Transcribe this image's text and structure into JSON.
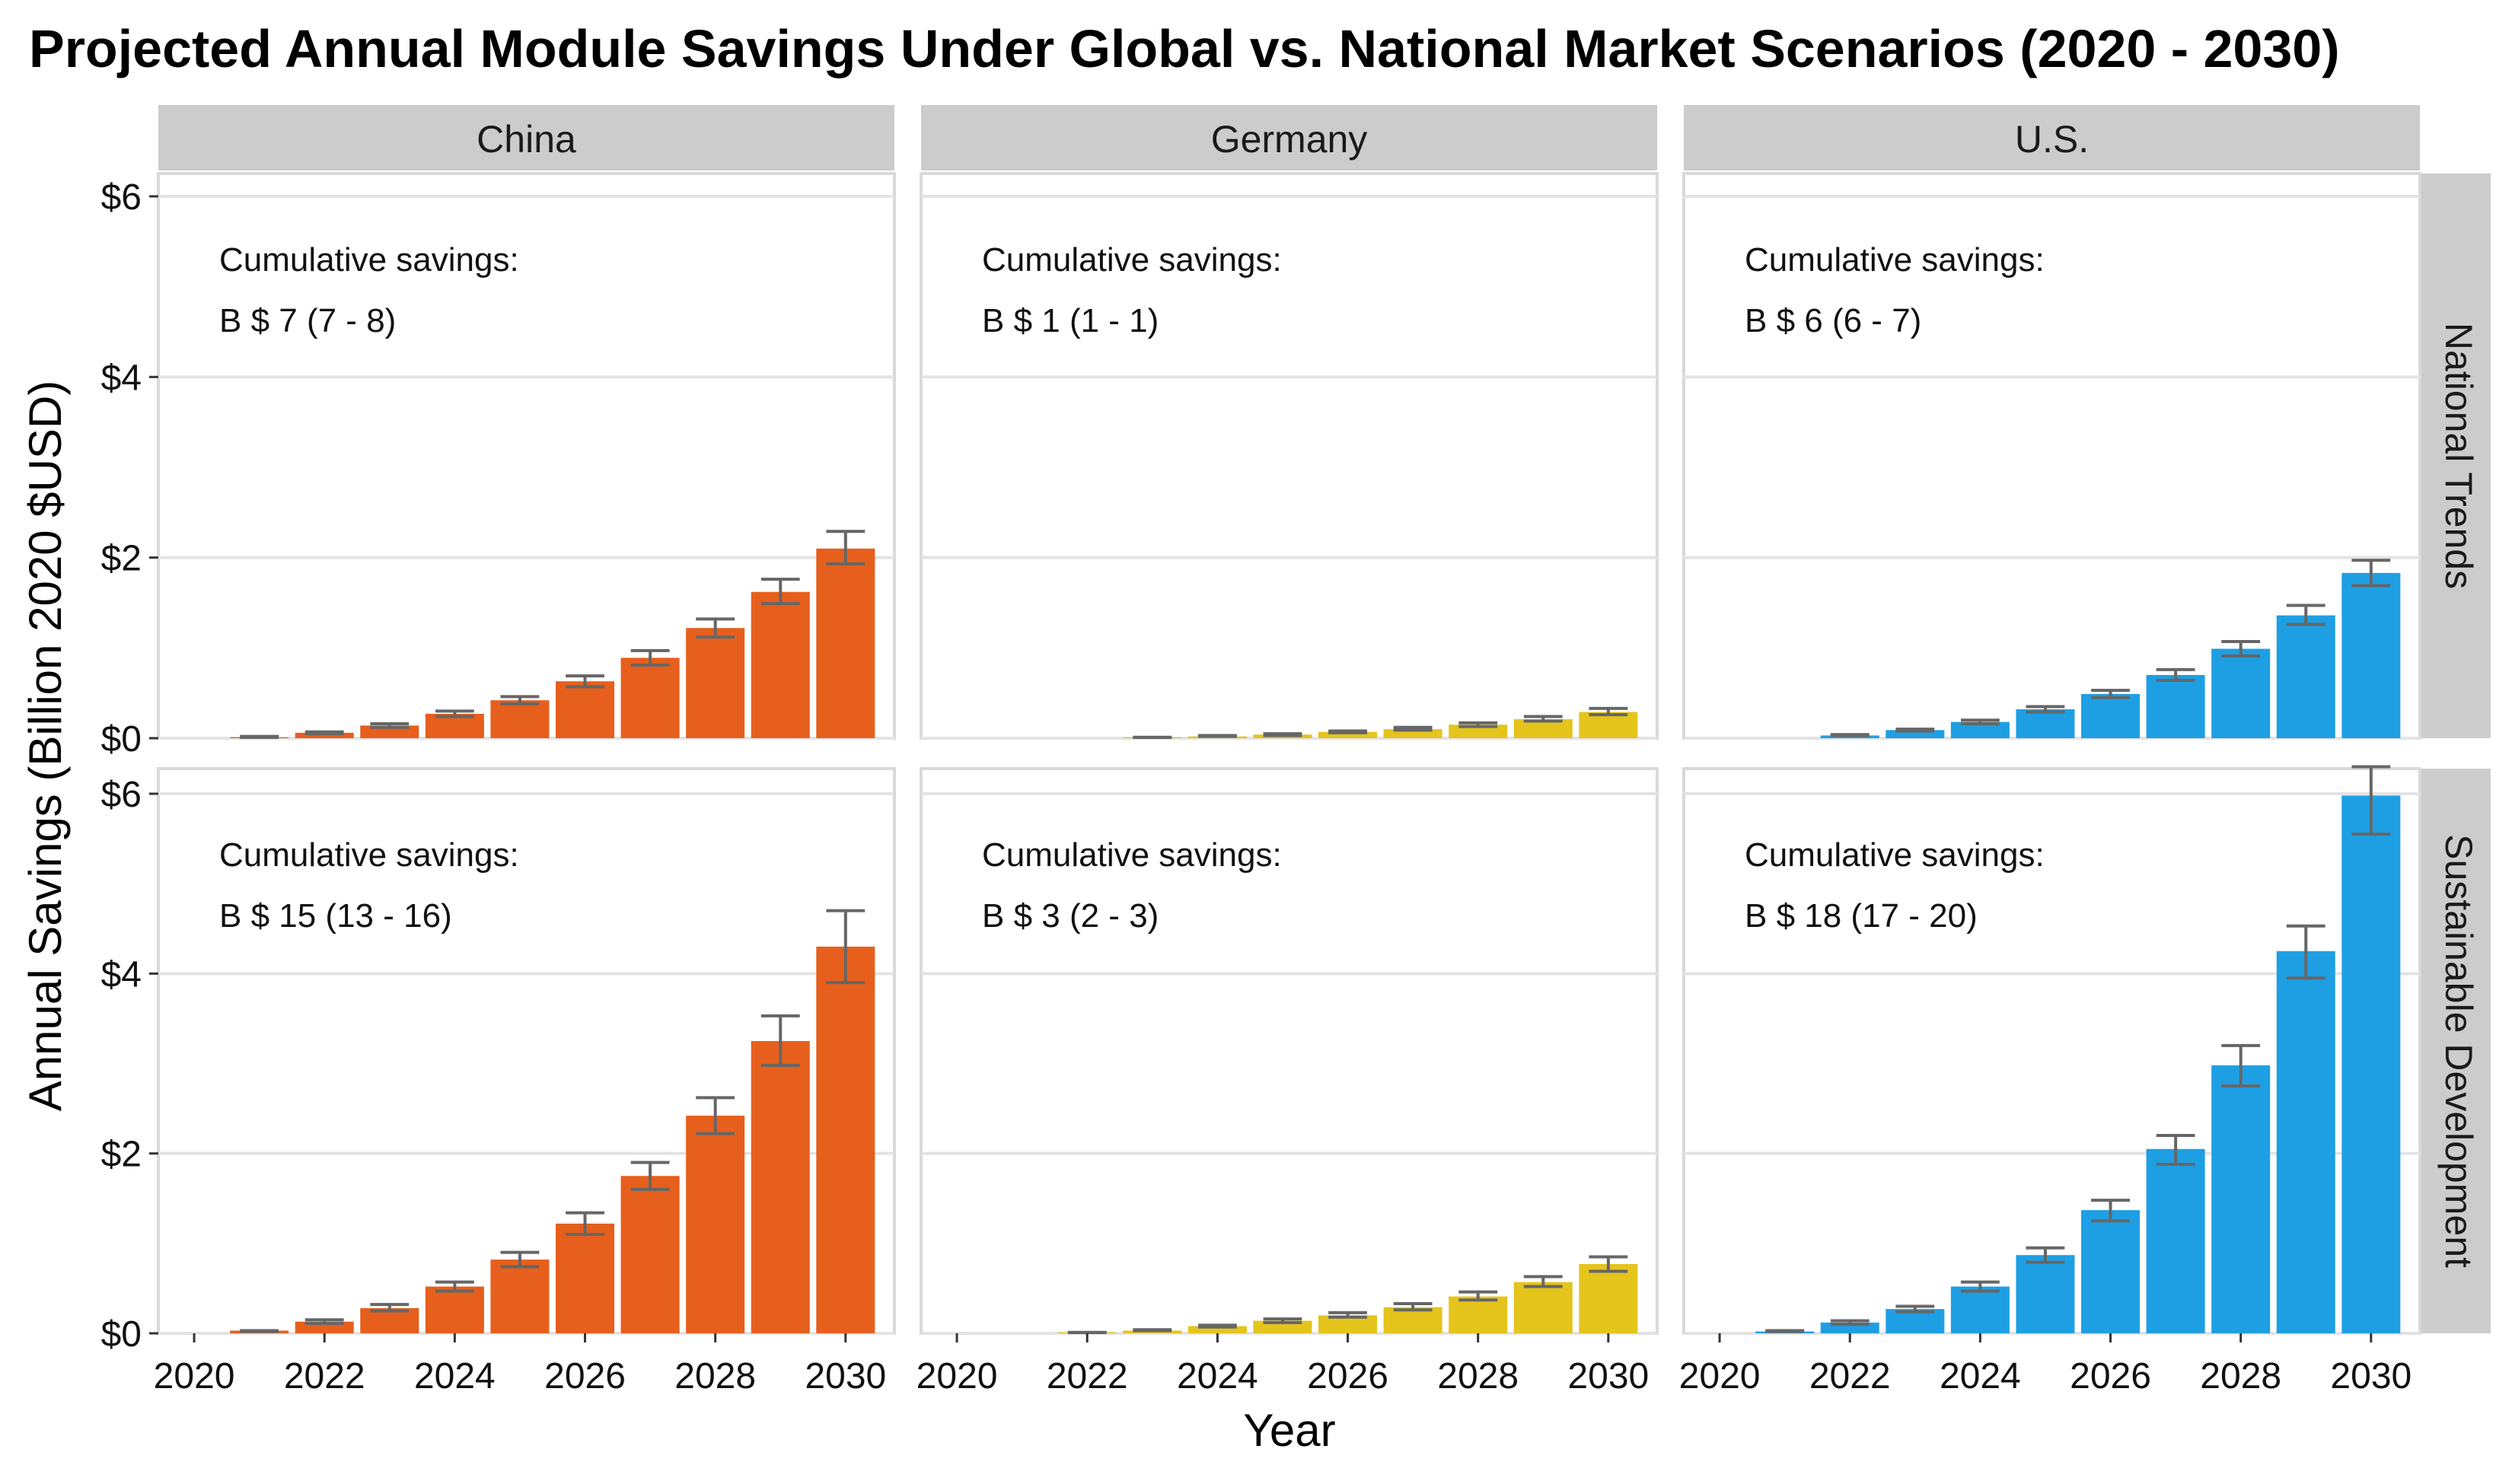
{
  "chart_data": {
    "type": "bar",
    "title": "Projected Annual Module Savings Under Global vs. National Market Scenarios (2020 - 2030)",
    "xlabel": "Year",
    "ylabel": "Annual Savings (Billion 2020 $USD)",
    "x": [
      2020,
      2021,
      2022,
      2023,
      2024,
      2025,
      2026,
      2027,
      2028,
      2029,
      2030
    ],
    "x_tick_labels": [
      "2020",
      "2022",
      "2024",
      "2026",
      "2028",
      "2030"
    ],
    "y_tick_labels": [
      "$0",
      "$2",
      "$4",
      "$6"
    ],
    "ylim": [
      0,
      6
    ],
    "columns": [
      "China",
      "Germany",
      "U.S."
    ],
    "rows": [
      "National Trends",
      "Sustainable Development"
    ],
    "colors": {
      "China": "#E65F1C",
      "Germany": "#E5C41C",
      "U.S.": "#1E9FE3",
      "errorbar": "#666666",
      "strip": "#CCCCCC",
      "grid": "#E3E3E3",
      "panel_border": "#D9D9D9"
    },
    "grid": true,
    "panels": [
      {
        "column": "China",
        "row": "National Trends",
        "annotation_line1": "Cumulative savings:",
        "annotation_line2": "B $ 7 (7 - 8)",
        "values": [
          0,
          0.01,
          0.06,
          0.14,
          0.27,
          0.42,
          0.63,
          0.89,
          1.22,
          1.62,
          2.1
        ],
        "err_low": [
          0,
          0.01,
          0.05,
          0.12,
          0.24,
          0.38,
          0.57,
          0.81,
          1.12,
          1.49,
          1.93
        ],
        "err_high": [
          0,
          0.02,
          0.07,
          0.16,
          0.3,
          0.46,
          0.69,
          0.97,
          1.32,
          1.76,
          2.29
        ]
      },
      {
        "column": "Germany",
        "row": "National Trends",
        "annotation_line1": "Cumulative savings:",
        "annotation_line2": "B $ 1 (1 - 1)",
        "values": [
          0,
          0,
          0,
          0.01,
          0.02,
          0.04,
          0.07,
          0.1,
          0.15,
          0.21,
          0.29
        ],
        "err_low": [
          0,
          0,
          0,
          0.01,
          0.02,
          0.03,
          0.06,
          0.09,
          0.13,
          0.19,
          0.26
        ],
        "err_high": [
          0,
          0,
          0,
          0.01,
          0.03,
          0.05,
          0.08,
          0.12,
          0.17,
          0.24,
          0.33
        ]
      },
      {
        "column": "U.S.",
        "row": "National Trends",
        "annotation_line1": "Cumulative savings:",
        "annotation_line2": "B $ 6 (6 - 7)",
        "values": [
          0,
          0,
          0.03,
          0.09,
          0.18,
          0.32,
          0.49,
          0.7,
          0.99,
          1.36,
          1.83
        ],
        "err_low": [
          0,
          0,
          0.03,
          0.08,
          0.16,
          0.29,
          0.45,
          0.64,
          0.91,
          1.26,
          1.69
        ],
        "err_high": [
          0,
          0,
          0.04,
          0.1,
          0.2,
          0.35,
          0.53,
          0.76,
          1.07,
          1.47,
          1.97
        ]
      },
      {
        "column": "China",
        "row": "Sustainable Development",
        "annotation_line1": "Cumulative savings:",
        "annotation_line2": "B $ 15 (13 - 16)",
        "values": [
          0,
          0.03,
          0.13,
          0.28,
          0.52,
          0.82,
          1.22,
          1.75,
          2.42,
          3.25,
          4.3
        ],
        "err_low": [
          0,
          0.02,
          0.11,
          0.25,
          0.47,
          0.74,
          1.1,
          1.6,
          2.22,
          2.98,
          3.9
        ],
        "err_high": [
          0,
          0.03,
          0.15,
          0.32,
          0.57,
          0.9,
          1.34,
          1.9,
          2.62,
          3.53,
          4.7
        ]
      },
      {
        "column": "Germany",
        "row": "Sustainable Development",
        "annotation_line1": "Cumulative savings:",
        "annotation_line2": "B $ 3 (2 - 3)",
        "values": [
          0,
          0,
          0.01,
          0.03,
          0.08,
          0.14,
          0.2,
          0.29,
          0.41,
          0.57,
          0.77
        ],
        "err_low": [
          0,
          0,
          0.01,
          0.03,
          0.07,
          0.12,
          0.18,
          0.26,
          0.37,
          0.52,
          0.69
        ],
        "err_high": [
          0,
          0,
          0.01,
          0.04,
          0.09,
          0.16,
          0.23,
          0.33,
          0.46,
          0.63,
          0.85
        ]
      },
      {
        "column": "U.S.",
        "row": "Sustainable Development",
        "annotation_line1": "Cumulative savings:",
        "annotation_line2": "B $ 18 (17 - 20)",
        "values": [
          0,
          0.02,
          0.12,
          0.27,
          0.52,
          0.87,
          1.37,
          2.05,
          2.98,
          4.25,
          5.98
        ],
        "err_low": [
          0,
          0.02,
          0.1,
          0.24,
          0.47,
          0.79,
          1.25,
          1.88,
          2.75,
          3.95,
          5.55
        ],
        "err_high": [
          0,
          0.03,
          0.14,
          0.3,
          0.57,
          0.95,
          1.48,
          2.2,
          3.2,
          4.53,
          6.3
        ]
      }
    ]
  }
}
